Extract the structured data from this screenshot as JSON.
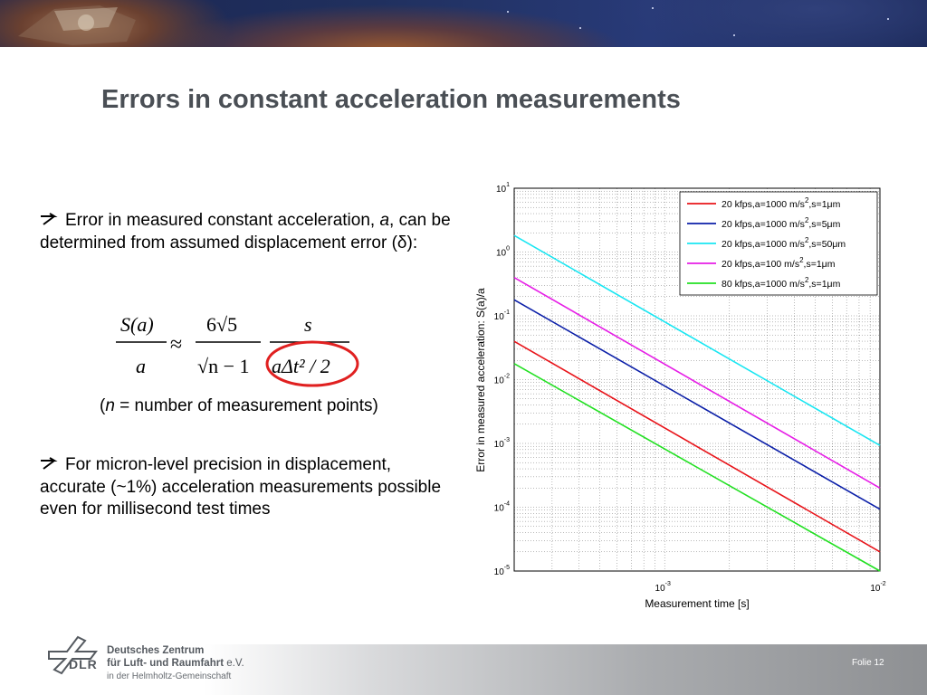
{
  "slide": {
    "title": "Errors in constant acceleration measurements",
    "bullet1_pre": "Error in measured constant acceleration,",
    "bullet1_var": "a",
    "bullet1_post": ", can be determined from assumed displacement error (δ):",
    "note_open": "(",
    "note_var": "n",
    "note_rest": " = number of measurement points)",
    "bullet2": "For micron-level precision in displacement, accurate (~1%) acceleration measurements possible even for millisecond test times",
    "highlight_color": "#e02020"
  },
  "formula": {
    "lhs_num": "S(a)",
    "lhs_den": "a",
    "approx": "≈",
    "coef_num": "6√5",
    "coef_den": "√n − 1",
    "rhs_num": "s",
    "rhs_den": "aΔt² / 2"
  },
  "footer": {
    "org_line1": "Deutsches Zentrum",
    "org_line2": "für Luft- und Raumfahrt",
    "org_ev": " e.V.",
    "org_line3": "in der Helmholtz-Gemeinschaft",
    "abbr": "DLR",
    "page": "Folie 12"
  },
  "chart_data": {
    "type": "line",
    "xscale": "log",
    "yscale": "log",
    "xlim": [
      0.0002,
      0.01
    ],
    "ylim": [
      1e-05,
      10
    ],
    "xlabel": "Measurement time [s]",
    "ylabel": "Error in measured acceleration: S(a)/a",
    "xticks": [
      {
        "base": "10",
        "exp": "-3"
      },
      {
        "base": "10",
        "exp": "-2"
      }
    ],
    "yticks": [
      {
        "base": "10",
        "exp": "1"
      },
      {
        "base": "10",
        "exp": "0"
      },
      {
        "base": "10",
        "exp": "-1"
      },
      {
        "base": "10",
        "exp": "-2"
      },
      {
        "base": "10",
        "exp": "-3"
      },
      {
        "base": "10",
        "exp": "-4"
      },
      {
        "base": "10",
        "exp": "-5"
      }
    ],
    "grid": true,
    "legend_position": "top-right",
    "series": [
      {
        "name": "20 kfps,a=1000 m/s2,s=1μm",
        "legend_main": "20 kfps,a=1000 m/s",
        "legend_sup": "2",
        "legend_tail": ",s=1μm",
        "color": "#e8141a",
        "x": [
          0.0002,
          0.01
        ],
        "y": [
          0.0398,
          2e-05
        ]
      },
      {
        "name": "20 kfps,a=1000 m/s2,s=5μm",
        "legend_main": "20 kfps,a=1000 m/s",
        "legend_sup": "2",
        "legend_tail": ",s=5μm",
        "color": "#0b1fa8",
        "x": [
          0.0002,
          0.01
        ],
        "y": [
          0.178,
          9.3e-05
        ]
      },
      {
        "name": "20 kfps,a=1000 m/s2,s=50μm",
        "legend_main": "20 kfps,a=1000 m/s",
        "legend_sup": "2",
        "legend_tail": ",s=50μm",
        "color": "#19e6f2",
        "x": [
          0.0002,
          0.01
        ],
        "y": [
          1.82,
          0.00093
        ]
      },
      {
        "name": "20 kfps,a=100 m/s2,s=1μm",
        "legend_main": "20 kfps,a=100 m/s",
        "legend_sup": "2",
        "legend_tail": ",s=1μm",
        "color": "#e61ee6",
        "x": [
          0.0002,
          0.01
        ],
        "y": [
          0.398,
          0.0002
        ]
      },
      {
        "name": "80 kfps,a=1000 m/s2,s=1μm",
        "legend_main": "80 kfps,a=1000 m/s",
        "legend_sup": "2",
        "legend_tail": ",s=1μm",
        "color": "#22e022",
        "x": [
          0.0002,
          0.01
        ],
        "y": [
          0.0178,
          1e-05
        ]
      }
    ]
  }
}
